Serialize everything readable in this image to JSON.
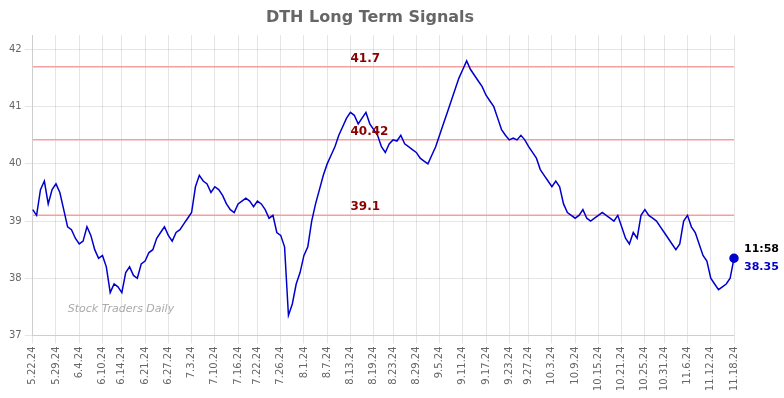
{
  "chart_data": {
    "type": "line",
    "title": "DTH Long Term Signals",
    "categories": [
      "5.22.24",
      null,
      null,
      null,
      null,
      null,
      "5.29.24",
      null,
      null,
      null,
      null,
      null,
      "6.4.24",
      null,
      null,
      null,
      null,
      null,
      "6.10.24",
      null,
      null,
      null,
      null,
      "6.14.24",
      null,
      null,
      null,
      null,
      null,
      "6.21.24",
      null,
      null,
      null,
      null,
      null,
      "6.27.24",
      null,
      null,
      null,
      null,
      null,
      "7.3.24",
      null,
      null,
      null,
      null,
      null,
      "7.10.24",
      null,
      null,
      null,
      null,
      null,
      "7.16.24",
      null,
      null,
      null,
      null,
      "7.22.24",
      null,
      null,
      null,
      null,
      null,
      "7.26.24",
      null,
      null,
      null,
      null,
      null,
      "8.1.24",
      null,
      null,
      null,
      null,
      null,
      "8.7.24",
      null,
      null,
      null,
      null,
      null,
      "8.13.24",
      null,
      null,
      null,
      null,
      null,
      "8.19.24",
      null,
      null,
      null,
      null,
      "8.23.24",
      null,
      null,
      null,
      null,
      null,
      "8.29.24",
      null,
      null,
      null,
      null,
      null,
      "9.5.24",
      null,
      null,
      null,
      null,
      null,
      "9.11.24",
      null,
      null,
      null,
      null,
      null,
      "9.17.24",
      null,
      null,
      null,
      null,
      null,
      "9.23.24",
      null,
      null,
      null,
      null,
      "9.27.24",
      null,
      null,
      null,
      null,
      null,
      "10.3.24",
      null,
      null,
      null,
      null,
      null,
      "10.9.24",
      null,
      null,
      null,
      null,
      null,
      "10.15.24",
      null,
      null,
      null,
      null,
      null,
      "10.21.24",
      null,
      null,
      null,
      null,
      null,
      "10.25.24",
      null,
      null,
      null,
      null,
      "10.31.24",
      null,
      null,
      null,
      null,
      null,
      "11.6.24",
      null,
      null,
      null,
      null,
      null,
      "11.12.24",
      null,
      null,
      null,
      null,
      null,
      "11.18.24"
    ],
    "values": [
      39.2,
      39.1,
      39.55,
      39.7,
      39.3,
      39.55,
      39.65,
      39.5,
      39.2,
      38.9,
      38.85,
      38.7,
      38.6,
      38.65,
      38.9,
      38.75,
      38.5,
      38.35,
      38.4,
      38.2,
      37.75,
      37.9,
      37.85,
      37.75,
      38.1,
      38.2,
      38.05,
      38.0,
      38.25,
      38.3,
      38.45,
      38.5,
      38.7,
      38.8,
      38.9,
      38.75,
      38.65,
      38.8,
      38.85,
      38.95,
      39.05,
      39.15,
      39.6,
      39.8,
      39.7,
      39.65,
      39.5,
      39.6,
      39.55,
      39.45,
      39.3,
      39.2,
      39.15,
      39.3,
      39.35,
      39.4,
      39.35,
      39.25,
      39.35,
      39.3,
      39.2,
      39.05,
      39.1,
      38.8,
      38.75,
      38.55,
      37.35,
      37.55,
      37.9,
      38.1,
      38.4,
      38.55,
      39.0,
      39.3,
      39.55,
      39.8,
      40.0,
      40.15,
      40.3,
      40.5,
      40.65,
      40.8,
      40.9,
      40.85,
      40.7,
      40.8,
      40.9,
      40.7,
      40.6,
      40.5,
      40.3,
      40.2,
      40.35,
      40.42,
      40.4,
      40.5,
      40.35,
      40.3,
      40.25,
      40.2,
      40.1,
      40.05,
      40.0,
      40.15,
      40.3,
      40.5,
      40.7,
      40.9,
      41.1,
      41.3,
      41.5,
      41.65,
      41.8,
      41.65,
      41.55,
      41.45,
      41.35,
      41.2,
      41.1,
      41.0,
      40.8,
      40.6,
      40.5,
      40.42,
      40.45,
      40.42,
      40.5,
      40.42,
      40.3,
      40.2,
      40.1,
      39.9,
      39.8,
      39.7,
      39.6,
      39.7,
      39.6,
      39.3,
      39.15,
      39.1,
      39.05,
      39.1,
      39.2,
      39.05,
      39.0,
      39.05,
      39.1,
      39.15,
      39.1,
      39.05,
      39.0,
      39.1,
      38.9,
      38.7,
      38.6,
      38.8,
      38.7,
      39.1,
      39.2,
      39.1,
      39.05,
      39.0,
      38.9,
      38.8,
      38.7,
      38.6,
      38.5,
      38.6,
      39.0,
      39.1,
      38.9,
      38.8,
      38.6,
      38.4,
      38.3,
      38.0,
      37.9,
      37.8,
      37.85,
      37.9,
      38.0,
      38.35
    ],
    "color": "#0000cd",
    "marker": "end",
    "ylim": [
      37,
      42.25
    ],
    "yticks": [
      37,
      38,
      39,
      40,
      41,
      42
    ],
    "grid": true,
    "hlines": [
      {
        "value": 41.7,
        "label": "41.7",
        "color": "#f4a0a0",
        "label_color": "#8b0000"
      },
      {
        "value": 40.42,
        "label": "40.42",
        "color": "#f4a0a0",
        "label_color": "#8b0000"
      },
      {
        "value": 39.1,
        "label": "39.1",
        "color": "#f4a0a0",
        "label_color": "#8b0000"
      }
    ],
    "annotations": [
      {
        "text": "11:58",
        "color": "#000000"
      },
      {
        "text": "38.35",
        "color": "#0000cd"
      },
      {
        "text": "Stock Traders Daily",
        "color": "#aaaaaa"
      }
    ]
  }
}
